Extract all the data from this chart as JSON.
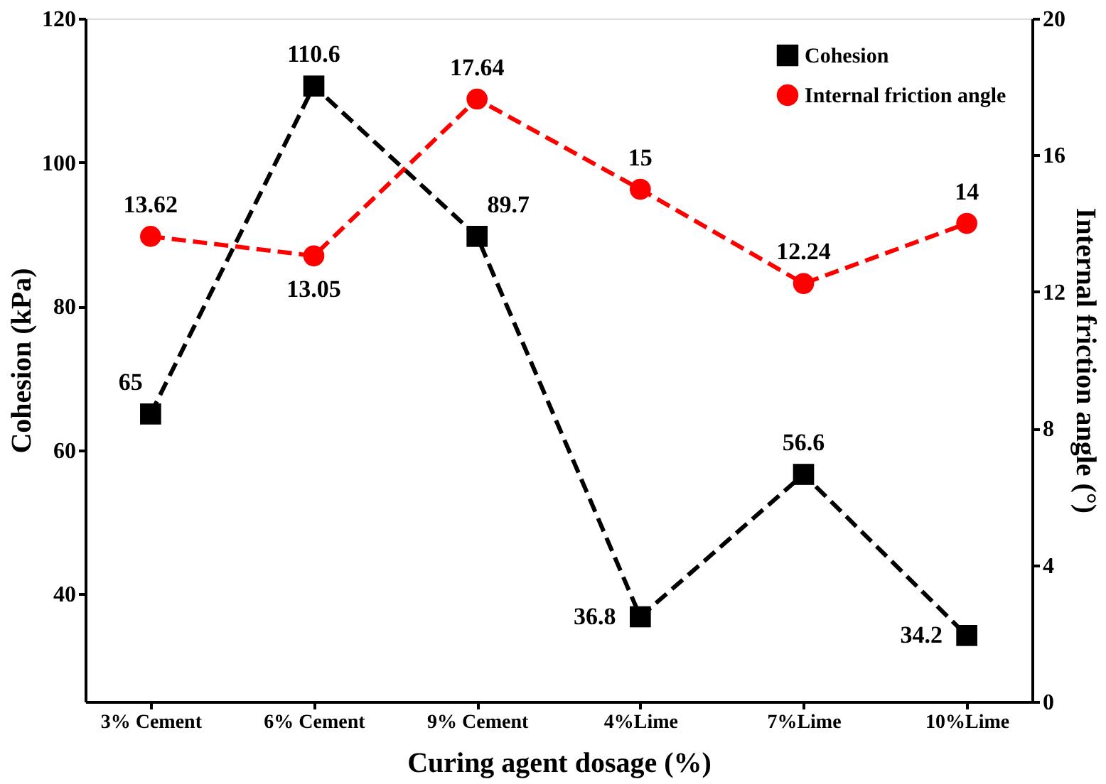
{
  "chart_data": {
    "type": "line",
    "xlabel": "Curing agent dosage (%)",
    "ylabel": "Cohesion (kPa)",
    "y2label": "Internal friction angle (°)",
    "categories": [
      "3% Cement",
      "6% Cement",
      "9% Cement",
      "4%Lime",
      "7%Lime",
      "10%Lime"
    ],
    "series": [
      {
        "name": "Cohesion",
        "color": "#000000",
        "values": [
          65,
          110.6,
          89.7,
          36.8,
          56.6,
          34.2
        ],
        "marker": "square",
        "line_style": "dashed"
      },
      {
        "name": "Internal friction angle",
        "color": "#ff0000",
        "values": [
          13.62,
          13.05,
          17.64,
          15,
          12.24,
          14
        ],
        "axis": "y2",
        "marker": "circle",
        "line_style": "dashed"
      }
    ],
    "ylim": [
      25,
      120
    ],
    "yticks": [
      40,
      60,
      80,
      100,
      120
    ],
    "y2lim": [
      0,
      20
    ],
    "y2ticks": [
      0,
      4,
      8,
      12,
      16,
      20
    ],
    "data_labels": true,
    "grid": false,
    "legend": "top right"
  }
}
